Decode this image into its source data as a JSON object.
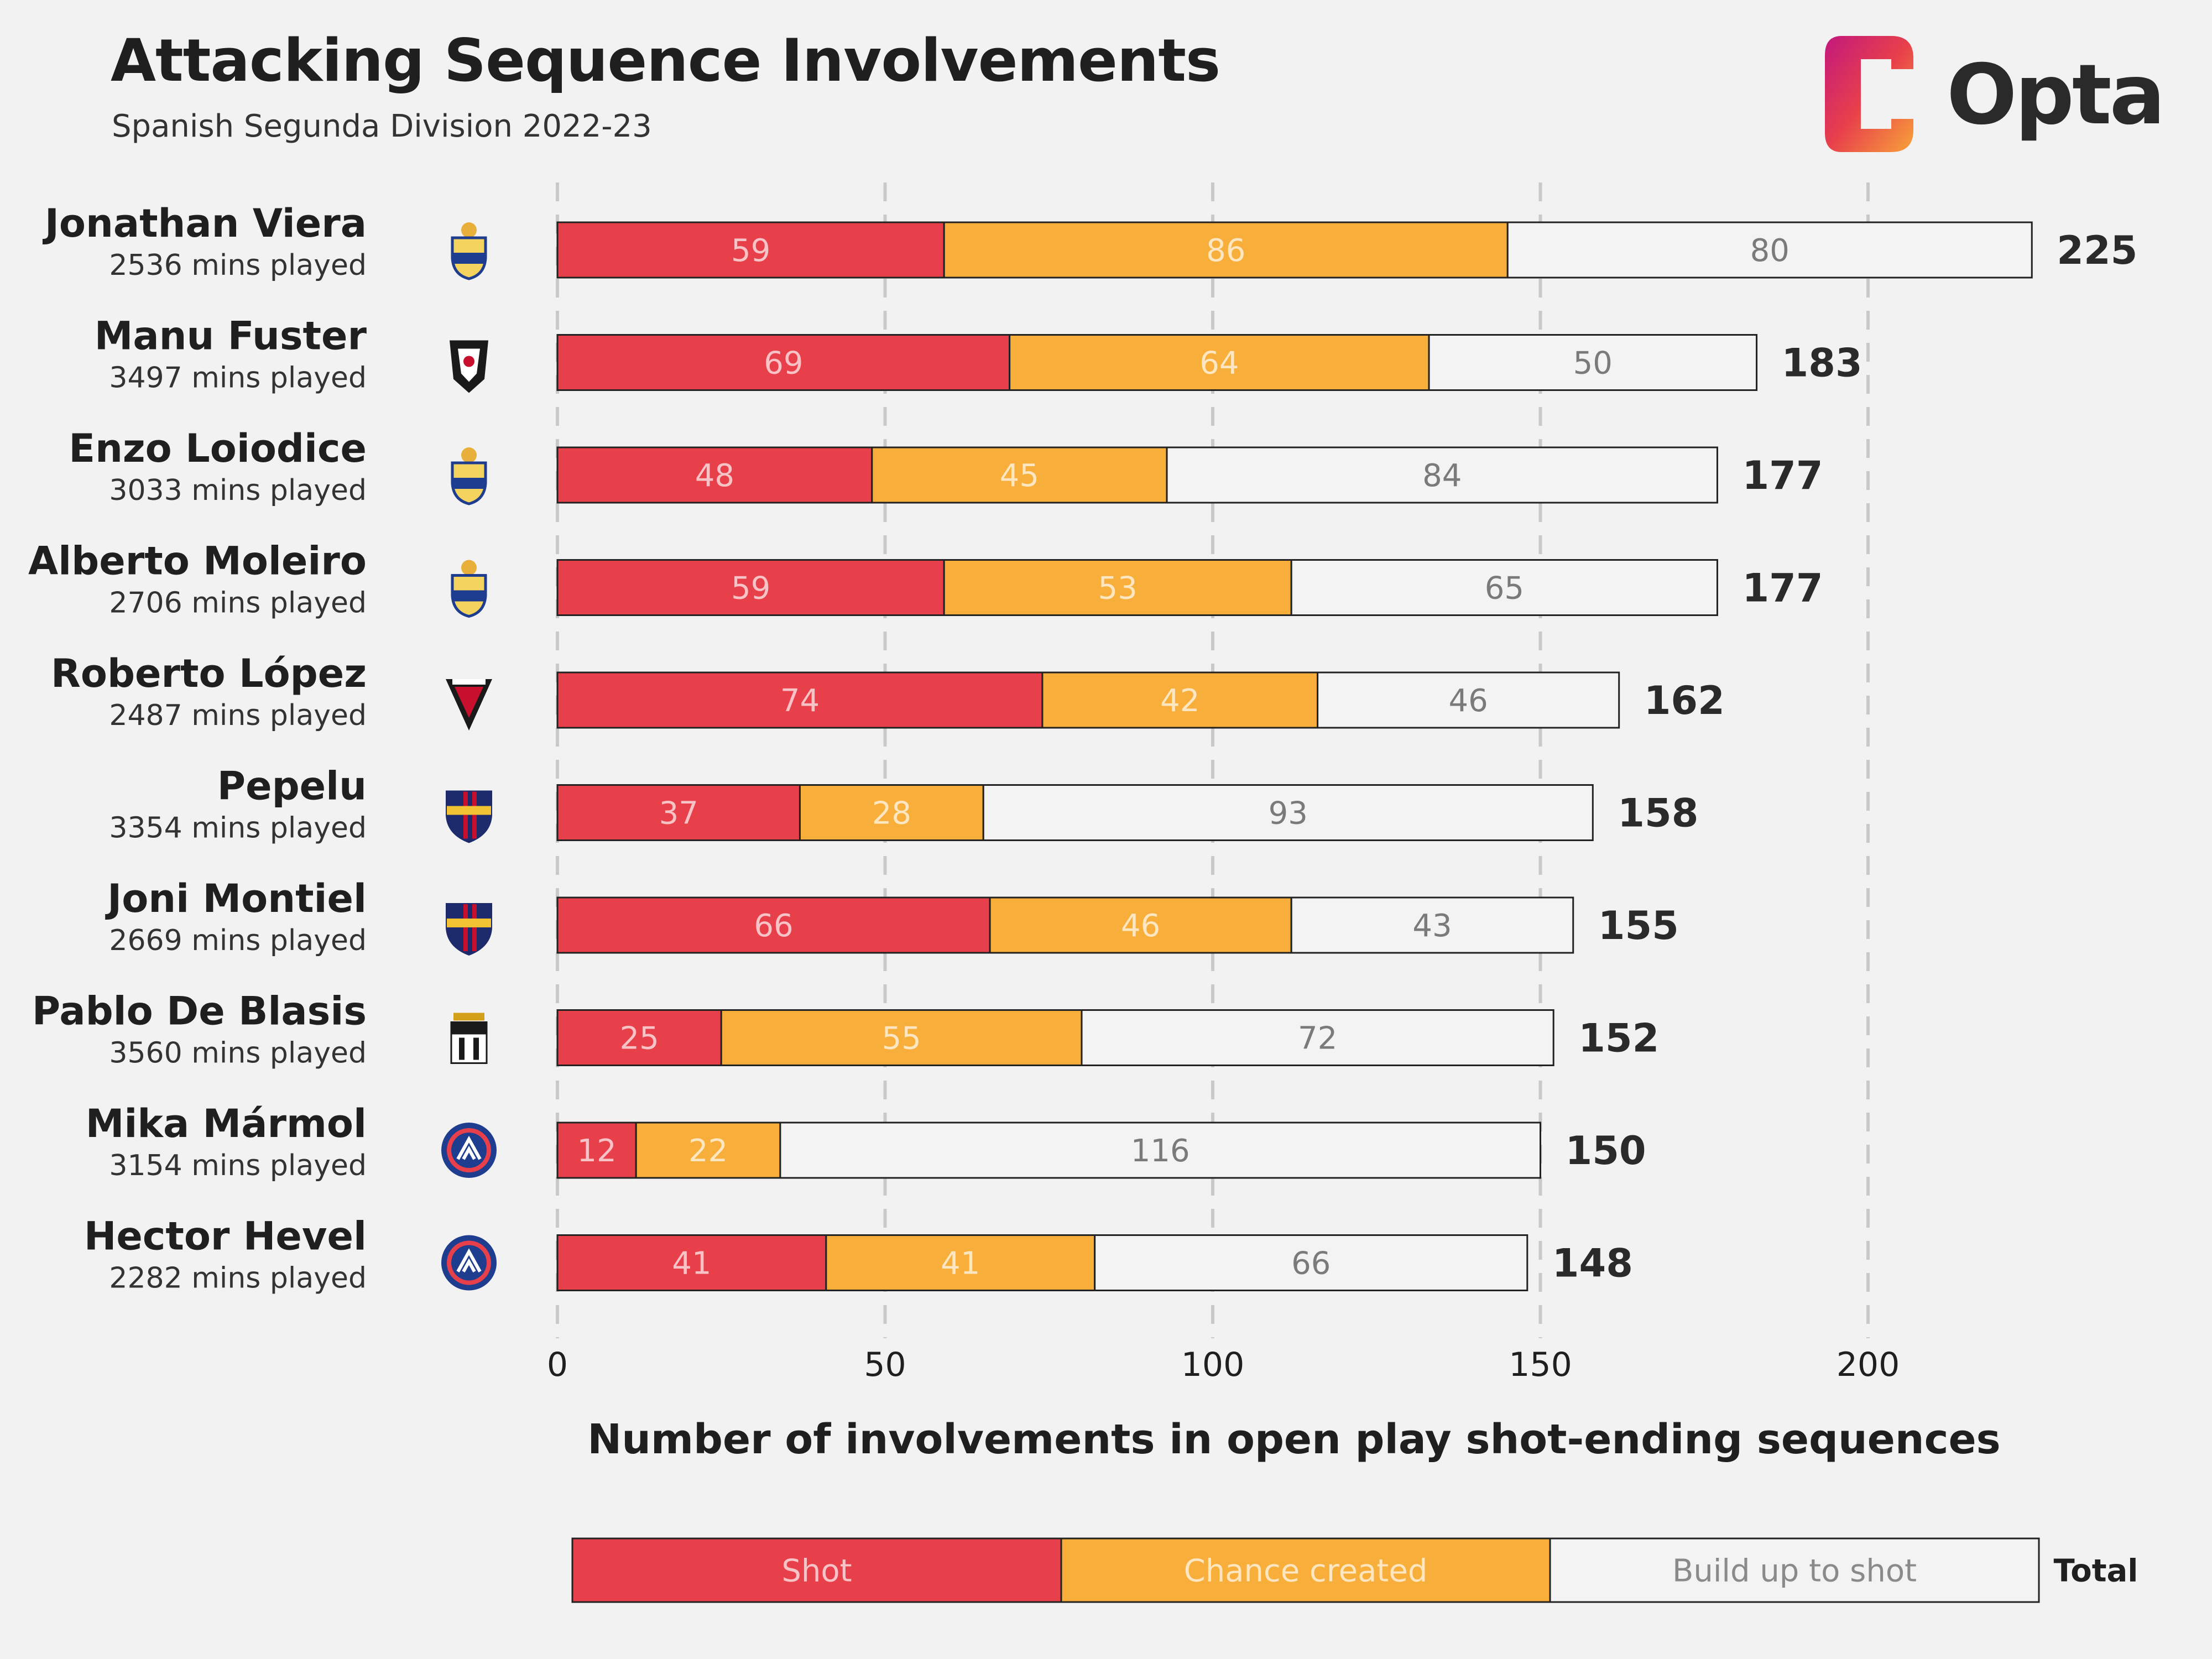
{
  "header": {
    "title": "Attacking Sequence Involvements",
    "subtitle": "Spanish Segunda Division 2022-23",
    "brand": "Opta"
  },
  "colors": {
    "shot": "#e8404b",
    "chance": "#f8ae3a",
    "buildup": "#f3f3f3",
    "background": "#f2f2f2",
    "outline": "#222222",
    "grid": "#c9c9c9"
  },
  "chart_data": {
    "type": "bar",
    "orientation": "horizontal",
    "stacked": true,
    "xlabel": "Number of involvements in open play shot-ending sequences",
    "xlim": [
      0,
      225
    ],
    "xticks": [
      0,
      50,
      100,
      150,
      200
    ],
    "grid": "vertical dashed",
    "categories": [
      "Jonathan Viera",
      "Manu Fuster",
      "Enzo Loiodice",
      "Alberto Moleiro",
      "Roberto López",
      "Pepelu",
      "Joni Montiel",
      "Pablo De Blasis",
      "Mika Mármol",
      "Hector Hevel"
    ],
    "subtitles": [
      "2536 mins played",
      "3497 mins played",
      "3033 mins played",
      "2706 mins played",
      "2487 mins played",
      "3354 mins played",
      "2669 mins played",
      "3560 mins played",
      "3154 mins played",
      "2282 mins played"
    ],
    "club_icons": [
      "ud-las-palmas-crest-icon",
      "albacete-crest-icon",
      "ud-las-palmas-crest-icon",
      "ud-las-palmas-crest-icon",
      "mirandes-crest-icon",
      "levante-crest-icon",
      "levante-crest-icon",
      "cartagena-crest-icon",
      "andorra-crest-icon",
      "andorra-crest-icon"
    ],
    "series": [
      {
        "name": "Shot",
        "values": [
          59,
          69,
          48,
          59,
          74,
          37,
          66,
          25,
          12,
          41
        ]
      },
      {
        "name": "Chance created",
        "values": [
          86,
          64,
          45,
          53,
          42,
          28,
          46,
          55,
          22,
          41
        ]
      },
      {
        "name": "Build up to shot",
        "values": [
          80,
          50,
          84,
          65,
          46,
          93,
          43,
          72,
          116,
          66
        ]
      }
    ],
    "totals": [
      225,
      183,
      177,
      177,
      162,
      158,
      155,
      152,
      150,
      148
    ],
    "legend": {
      "position": "bottom",
      "items": [
        "Shot",
        "Chance created",
        "Build up to shot"
      ],
      "total_label": "Total"
    }
  }
}
